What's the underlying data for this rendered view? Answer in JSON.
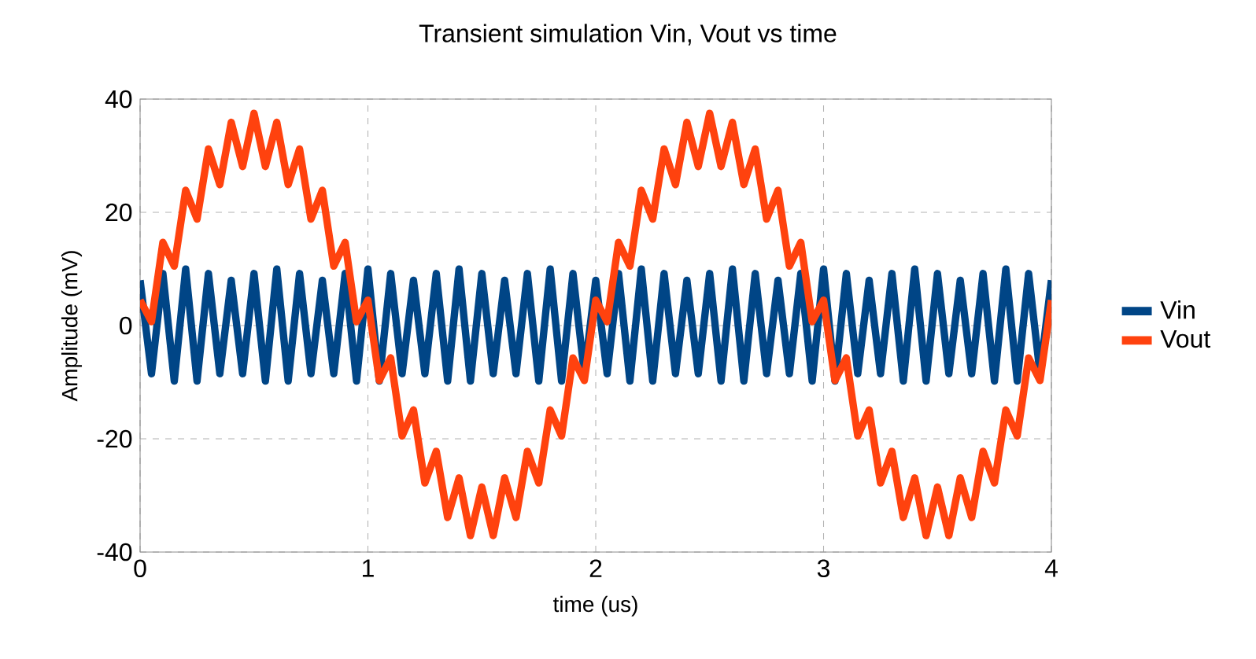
{
  "chart_data": {
    "type": "line",
    "title": "Transient simulation Vin, Vout vs time",
    "xlabel": "time (us)",
    "ylabel": "Amplitude (mV)",
    "x": [
      0,
      0.05,
      0.1,
      0.15,
      0.2,
      0.25,
      0.3,
      0.35,
      0.4,
      0.45,
      0.5,
      0.55,
      0.6,
      0.65,
      0.7,
      0.75,
      0.8,
      0.85,
      0.9,
      0.95,
      1,
      1.05,
      1.1,
      1.15,
      1.2,
      1.25,
      1.3,
      1.35,
      1.4,
      1.45,
      1.5,
      1.55,
      1.6,
      1.65,
      1.7,
      1.75,
      1.8,
      1.85,
      1.9,
      1.95,
      2,
      2.05,
      2.1,
      2.15,
      2.2,
      2.25,
      2.3,
      2.35,
      2.4,
      2.45,
      2.5,
      2.55,
      2.6,
      2.65,
      2.7,
      2.75,
      2.8,
      2.85,
      2.9,
      2.95,
      3,
      3.05,
      3.1,
      3.15,
      3.2,
      3.25,
      3.3,
      3.35,
      3.4,
      3.45,
      3.5,
      3.55,
      3.6,
      3.65,
      3.7,
      3.75,
      3.8,
      3.85,
      3.9,
      3.95,
      4
    ],
    "series": [
      {
        "name": "Vin",
        "color": "#004586",
        "values": [
          8,
          -8.5,
          9.2,
          -9.8,
          10,
          -9.8,
          9.2,
          -8.5,
          8,
          -8.5,
          9.2,
          -9.8,
          10,
          -9.8,
          9.2,
          -8.5,
          8,
          -8.5,
          9.2,
          -9.8,
          10,
          -9.8,
          9.2,
          -8.5,
          8,
          -8.5,
          9.2,
          -9.8,
          10,
          -9.8,
          9.2,
          -8.5,
          8,
          -8.5,
          9.2,
          -9.8,
          10,
          -9.8,
          9.2,
          -8.5,
          8,
          -8.5,
          9.2,
          -9.8,
          10,
          -9.8,
          9.2,
          -8.5,
          8,
          -8.5,
          9.2,
          -9.8,
          10,
          -9.8,
          9.2,
          -8.5,
          8,
          -8.5,
          9.2,
          -9.8,
          10,
          -9.8,
          9.2,
          -8.5,
          8,
          -8.5,
          9.2,
          -9.8,
          10,
          -9.8,
          9.2,
          -8.5,
          8,
          -8.5,
          9.2,
          -9.8,
          10,
          -9.8,
          9.2,
          -8.5,
          8
        ]
      },
      {
        "name": "Vout",
        "color": "#ff420e",
        "values": [
          4.5,
          0.7,
          14.7,
          10.5,
          23.9,
          18.8,
          31.2,
          24.9,
          35.9,
          28.1,
          37.5,
          28.1,
          35.9,
          24.9,
          31.2,
          18.8,
          23.9,
          10.5,
          14.7,
          0.7,
          4.5,
          -9.7,
          -5.7,
          -19.5,
          -14.9,
          -27.8,
          -22.2,
          -33.9,
          -26.9,
          -37.1,
          -28.5,
          -37.1,
          -26.9,
          -33.9,
          -22.2,
          -27.8,
          -14.9,
          -19.5,
          -5.7,
          -9.7,
          4.5,
          0.7,
          14.7,
          10.5,
          23.9,
          18.8,
          31.2,
          24.9,
          35.9,
          28.1,
          37.5,
          28.1,
          35.9,
          24.9,
          31.2,
          18.8,
          23.9,
          10.5,
          14.7,
          0.7,
          4.5,
          -9.7,
          -5.7,
          -19.5,
          -14.9,
          -27.8,
          -22.2,
          -33.9,
          -26.9,
          -37.1,
          -28.5,
          -37.1,
          -26.9,
          -33.9,
          -22.2,
          -27.8,
          -14.9,
          -19.5,
          -5.7,
          -9.7,
          4.5
        ]
      }
    ],
    "xlim": [
      0,
      4
    ],
    "xticks": [
      0,
      1,
      2,
      3,
      4
    ],
    "ylim": [
      -40,
      40
    ],
    "yticks": [
      -40,
      -20,
      0,
      20,
      40
    ],
    "grid": true,
    "legend": "right",
    "marker": "none",
    "line_style": "solid"
  }
}
